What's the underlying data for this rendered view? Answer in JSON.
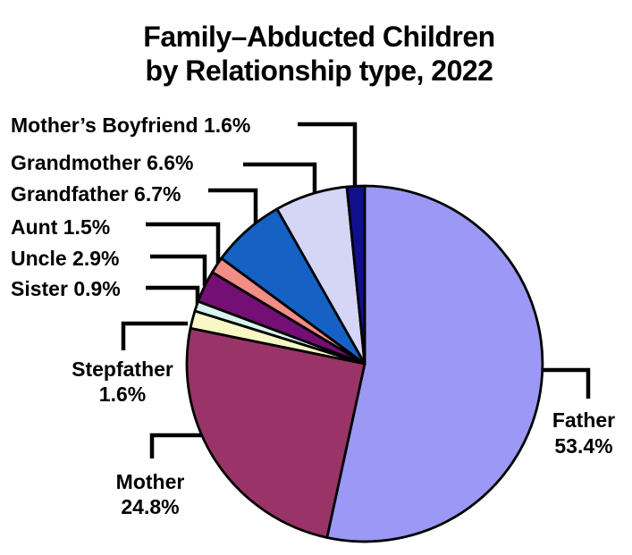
{
  "title": {
    "line1": "Family–Abducted Children",
    "line2": "by Relationship type, 2022"
  },
  "chart_data": {
    "type": "pie",
    "title": "Family–Abducted Children by Relationship type, 2022",
    "start_angle_deg": 0,
    "direction": "clockwise",
    "value_suffix": "%",
    "legend": "none",
    "label_style": "external-callout-lines",
    "outline_color": "#000000",
    "slices": [
      {
        "label": "Father",
        "value": 53.4,
        "color": "#9b99f5"
      },
      {
        "label": "Mother",
        "value": 24.8,
        "color": "#9a3468"
      },
      {
        "label": "Stepfather",
        "value": 1.6,
        "color": "#f8f8c6"
      },
      {
        "label": "Sister",
        "value": 0.9,
        "color": "#d8f4ee"
      },
      {
        "label": "Uncle",
        "value": 2.9,
        "color": "#730f75"
      },
      {
        "label": "Aunt",
        "value": 1.5,
        "color": "#f28d88"
      },
      {
        "label": "Grandfather",
        "value": 6.7,
        "color": "#1661c4"
      },
      {
        "label": "Grandmother",
        "value": 6.6,
        "color": "#d5d5f6"
      },
      {
        "label": "Mother’s Boyfriend",
        "value": 1.6,
        "color": "#10108e"
      }
    ]
  }
}
